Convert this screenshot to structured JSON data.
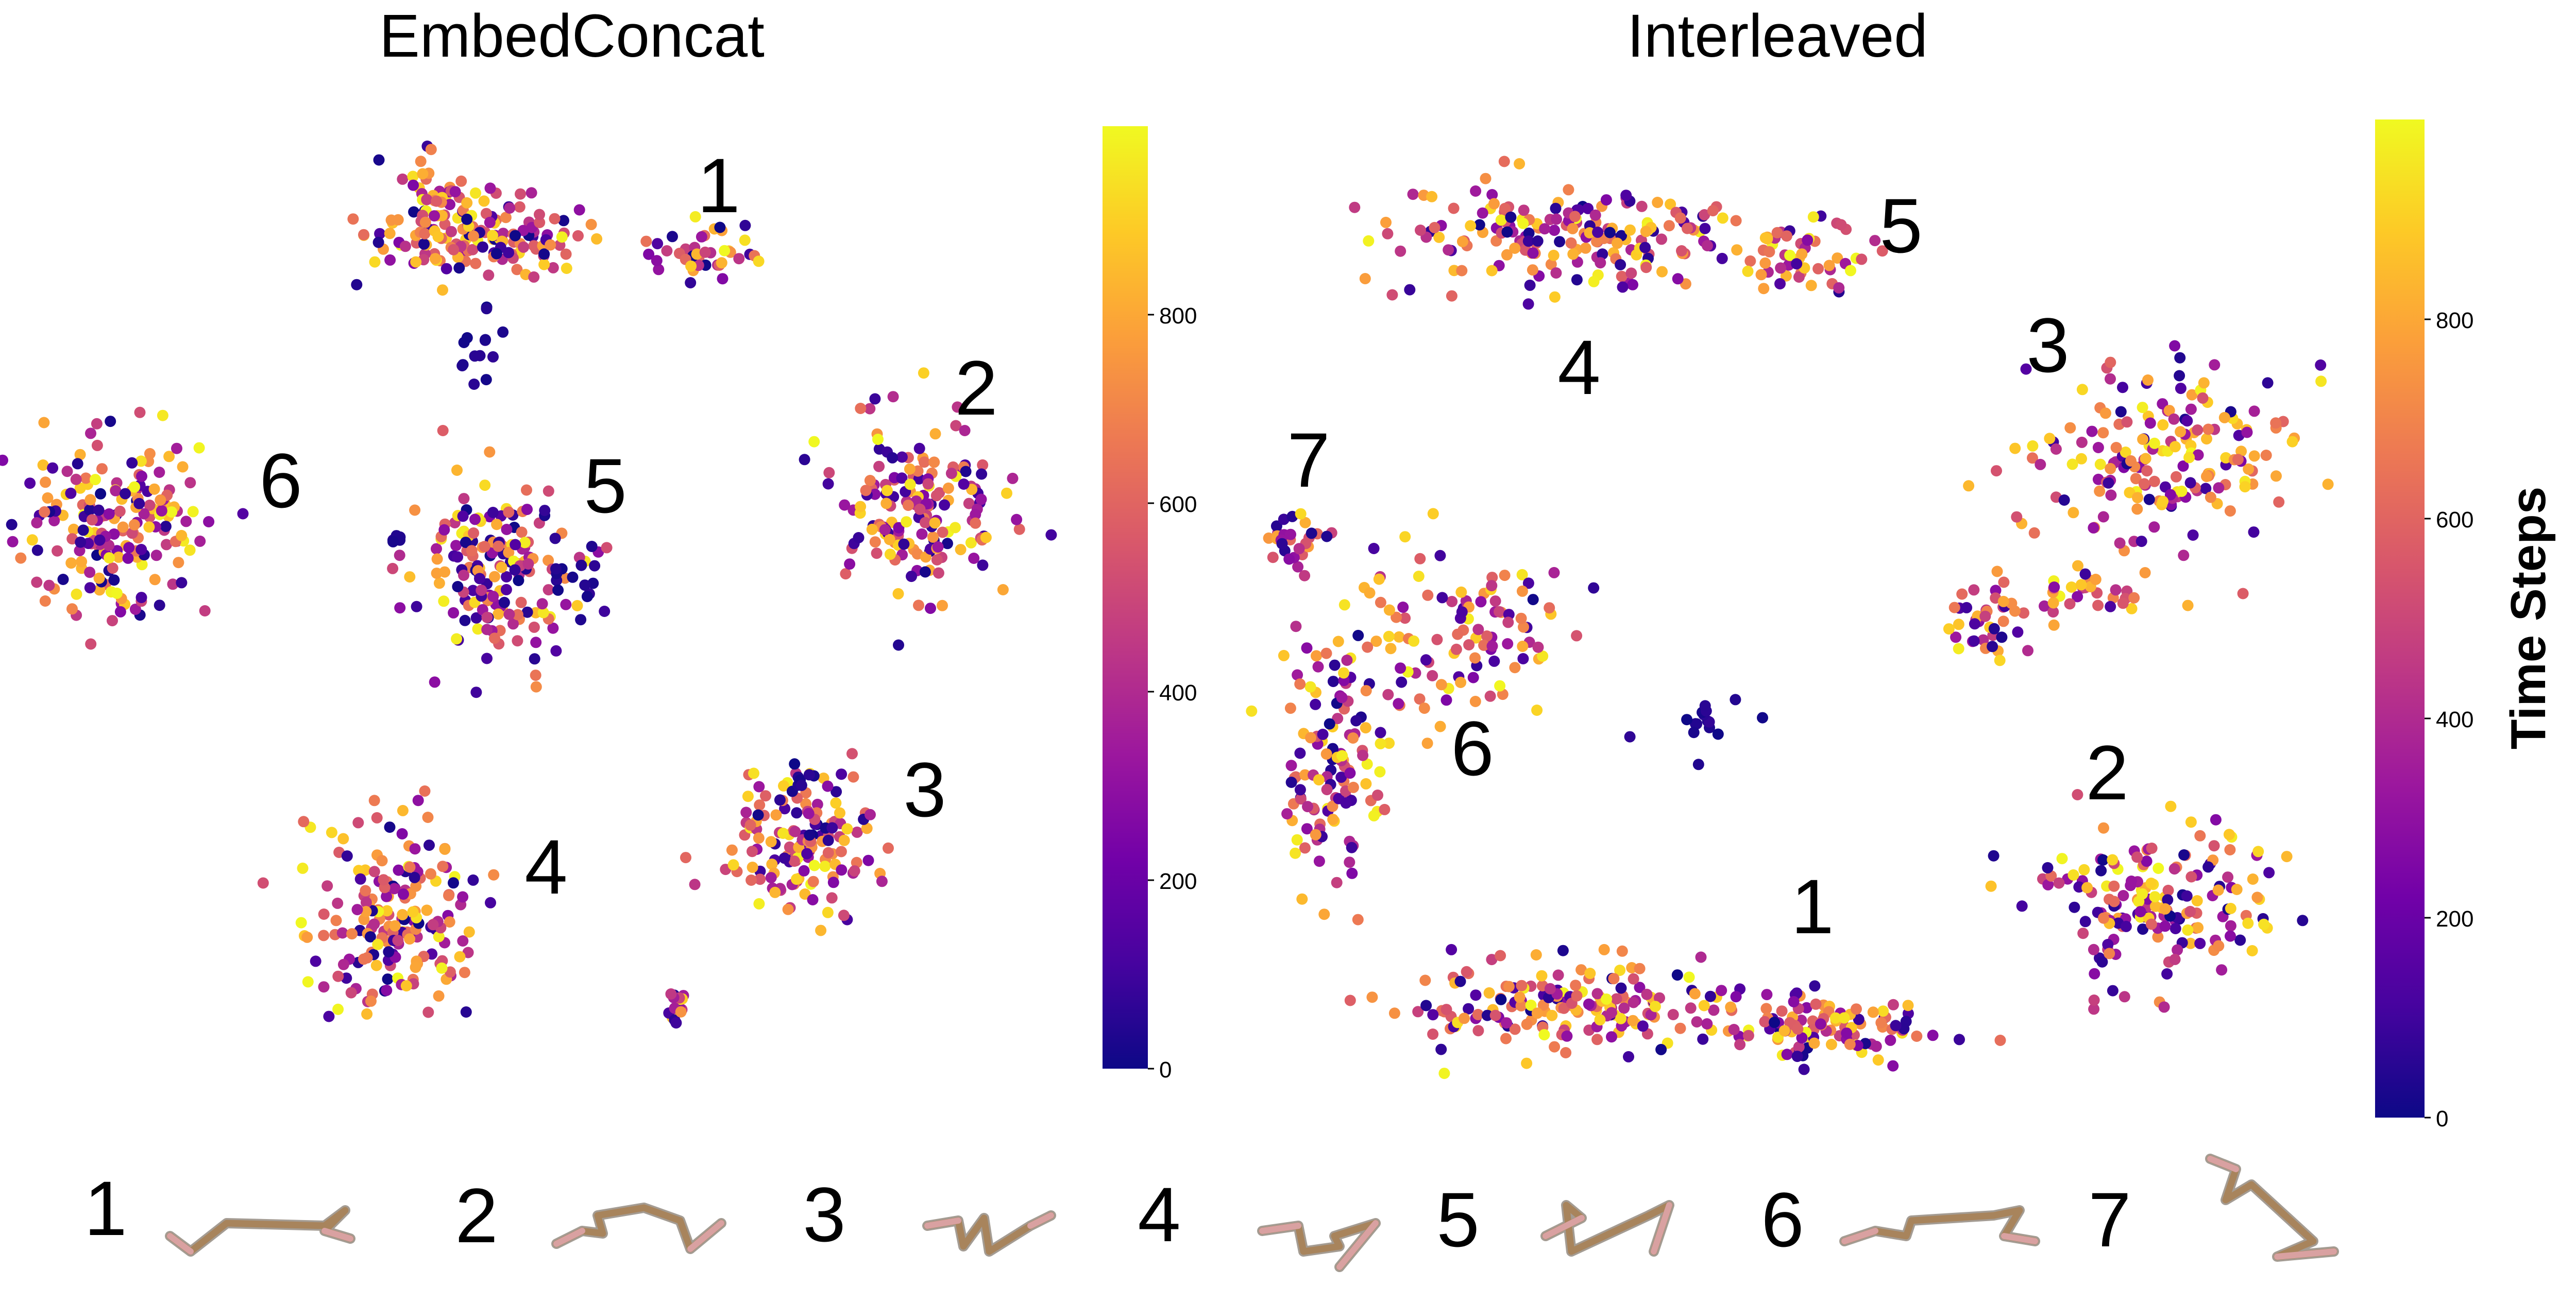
{
  "chart_data": [
    {
      "type": "scatter",
      "title": "EmbedConcat",
      "color_variable": "Time Steps",
      "colormap": "plasma",
      "colormap_stops": [
        "#0d0887",
        "#46039f",
        "#7201a8",
        "#9c179e",
        "#bd3786",
        "#d8576b",
        "#ed7953",
        "#fb9f3a",
        "#fdca26",
        "#f0f921"
      ],
      "colorbar_range": [
        0,
        1000
      ],
      "colorbar_ticks": [
        "0",
        "200",
        "400",
        "600",
        "800"
      ],
      "cluster_labels": [
        "1",
        "2",
        "3",
        "4",
        "5",
        "6"
      ],
      "axes_visible": false
    },
    {
      "type": "scatter",
      "title": "Interleaved",
      "color_variable": "Time Steps",
      "colormap": "plasma",
      "colormap_stops": [
        "#0d0887",
        "#46039f",
        "#7201a8",
        "#9c179e",
        "#bd3786",
        "#d8576b",
        "#ed7953",
        "#fb9f3a",
        "#fdca26",
        "#f0f921"
      ],
      "colorbar_range": [
        0,
        1000
      ],
      "colorbar_ticks": [
        "0",
        "200",
        "400",
        "600",
        "800"
      ],
      "colorbar_label": "Time Steps",
      "cluster_labels": [
        "1",
        "2",
        "3",
        "4",
        "5",
        "6",
        "7"
      ],
      "axes_visible": false
    }
  ],
  "pose_legend": {
    "labels": [
      "1",
      "2",
      "3",
      "4",
      "5",
      "6",
      "7"
    ],
    "limb_color": "#a8845c",
    "foot_color": "#d9a1a1"
  }
}
